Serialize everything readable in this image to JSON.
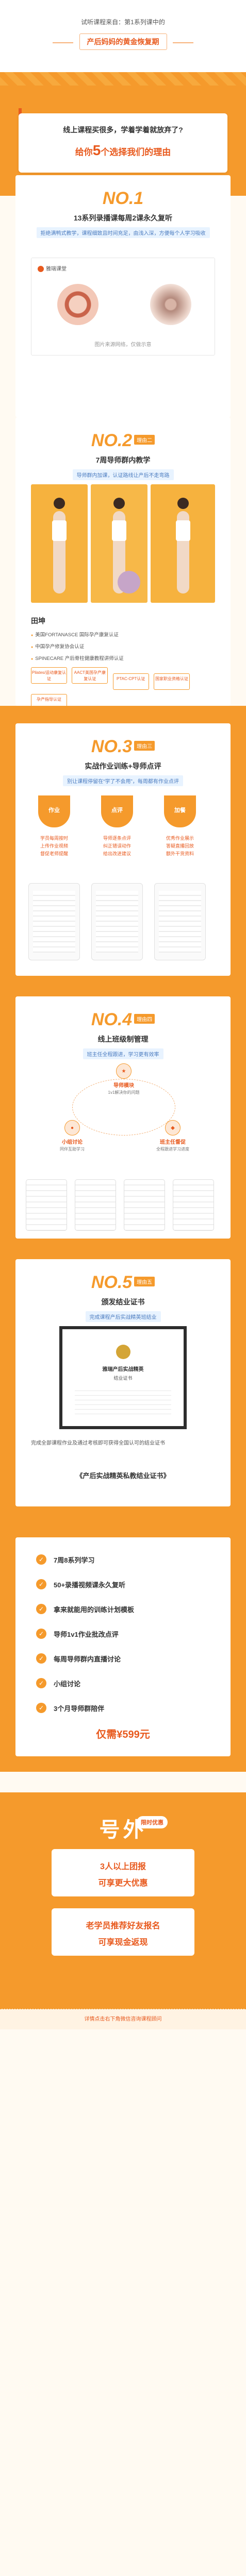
{
  "header": {
    "from": "试听课程来自：第1系列课中的",
    "main": "产后妈妈的黄金恢复期"
  },
  "intro": {
    "line1": "线上课程买很多，学着学着就放弃了?",
    "line2_pre": "给你",
    "line2_num": "5",
    "line2_post": "个选择我们的理由"
  },
  "s1": {
    "no": "NO.1",
    "title": "13系列录播课每周2课永久复听",
    "sub": "拒绝满鸭式教学，课程细致且时间充足，由浅入深，方便每个人学习吸收",
    "logo": "雅瑞课堂",
    "caption": "图片来源网络，仅做示意"
  },
  "s2": {
    "no": "NO.2",
    "tag": "理由二",
    "title": "7周导师群内教学",
    "sub": "导师群内加课，认证路线让产后不走弯路",
    "trainer": {
      "name": "田坤",
      "lines": [
        "美国FORTANASCE 国际孕产康复认证",
        "中国孕产修复协会认证",
        "SPINECARE 产后脊柱健康教程讲师认证"
      ]
    },
    "certs": [
      "Pilates/运动康复认证",
      "AACT美国孕产康复认证",
      "PTAC-CPT认证",
      "国家职业资格认证",
      "孕产指导认证"
    ]
  },
  "s3": {
    "no": "NO.3",
    "tag": "理由三",
    "title": "实战作业训练+导师点评",
    "sub": "别让课程停留在“学了不会用”，每周都有作业点评",
    "cols": [
      {
        "label": "作业",
        "lines": [
          "学员每周按时",
          "上传作业视频",
          "督促老师提醒"
        ]
      },
      {
        "label": "点评",
        "lines": [
          "导师逐条点评",
          "纠正错误动作",
          "给出改进建议"
        ]
      },
      {
        "label": "加餐",
        "lines": [
          "优秀作业展示",
          "答疑直播回放",
          "额外干货资料"
        ]
      }
    ]
  },
  "s4": {
    "no": "NO.4",
    "tag": "理由四",
    "title": "线上班级制管理",
    "sub": "班主任全程跟进，学习更有效率",
    "nodes": [
      {
        "label": "导师模块",
        "small": "1v1解决你的问题"
      },
      {
        "label": "小组讨论",
        "small": "同伴互助学习"
      },
      {
        "label": "班主任督促",
        "small": "全程跟进学习进度"
      }
    ]
  },
  "s5": {
    "no": "NO.5",
    "tag": "理由五",
    "title": "颁发结业证书",
    "sub": "完成课程产后实战精英班结业",
    "cert": {
      "title": "雅瑞产后实战精英",
      "name": "结业证书"
    },
    "desc": "完成全部课程作业及通过考核即可获得全国认可的结业证书",
    "cert_name": "《产后实战精英私教结业证书》"
  },
  "list": {
    "items": [
      {
        "text": "7周8系列学习",
        "small": ""
      },
      {
        "text": "50+录播视频课永久复听",
        "small": ""
      },
      {
        "text": "拿来就能用的训练计划模板",
        "small": ""
      },
      {
        "text": "导师1v1作业批改点评",
        "small": ""
      },
      {
        "text": "每周导师群内直播讨论",
        "small": ""
      },
      {
        "text": "小组讨论",
        "small": ""
      },
      {
        "text": "3个月导师群陪伴",
        "small": ""
      }
    ],
    "price": "仅需¥599元"
  },
  "extra": {
    "title": "号外",
    "badge": "限时优惠",
    "offer1": [
      "3人以上团报",
      "可享更大优惠"
    ],
    "offer2": [
      "老学员推荐好友报名",
      "可享现金返现"
    ],
    "footer": "详情点击右下角微信咨询课程顾问"
  }
}
